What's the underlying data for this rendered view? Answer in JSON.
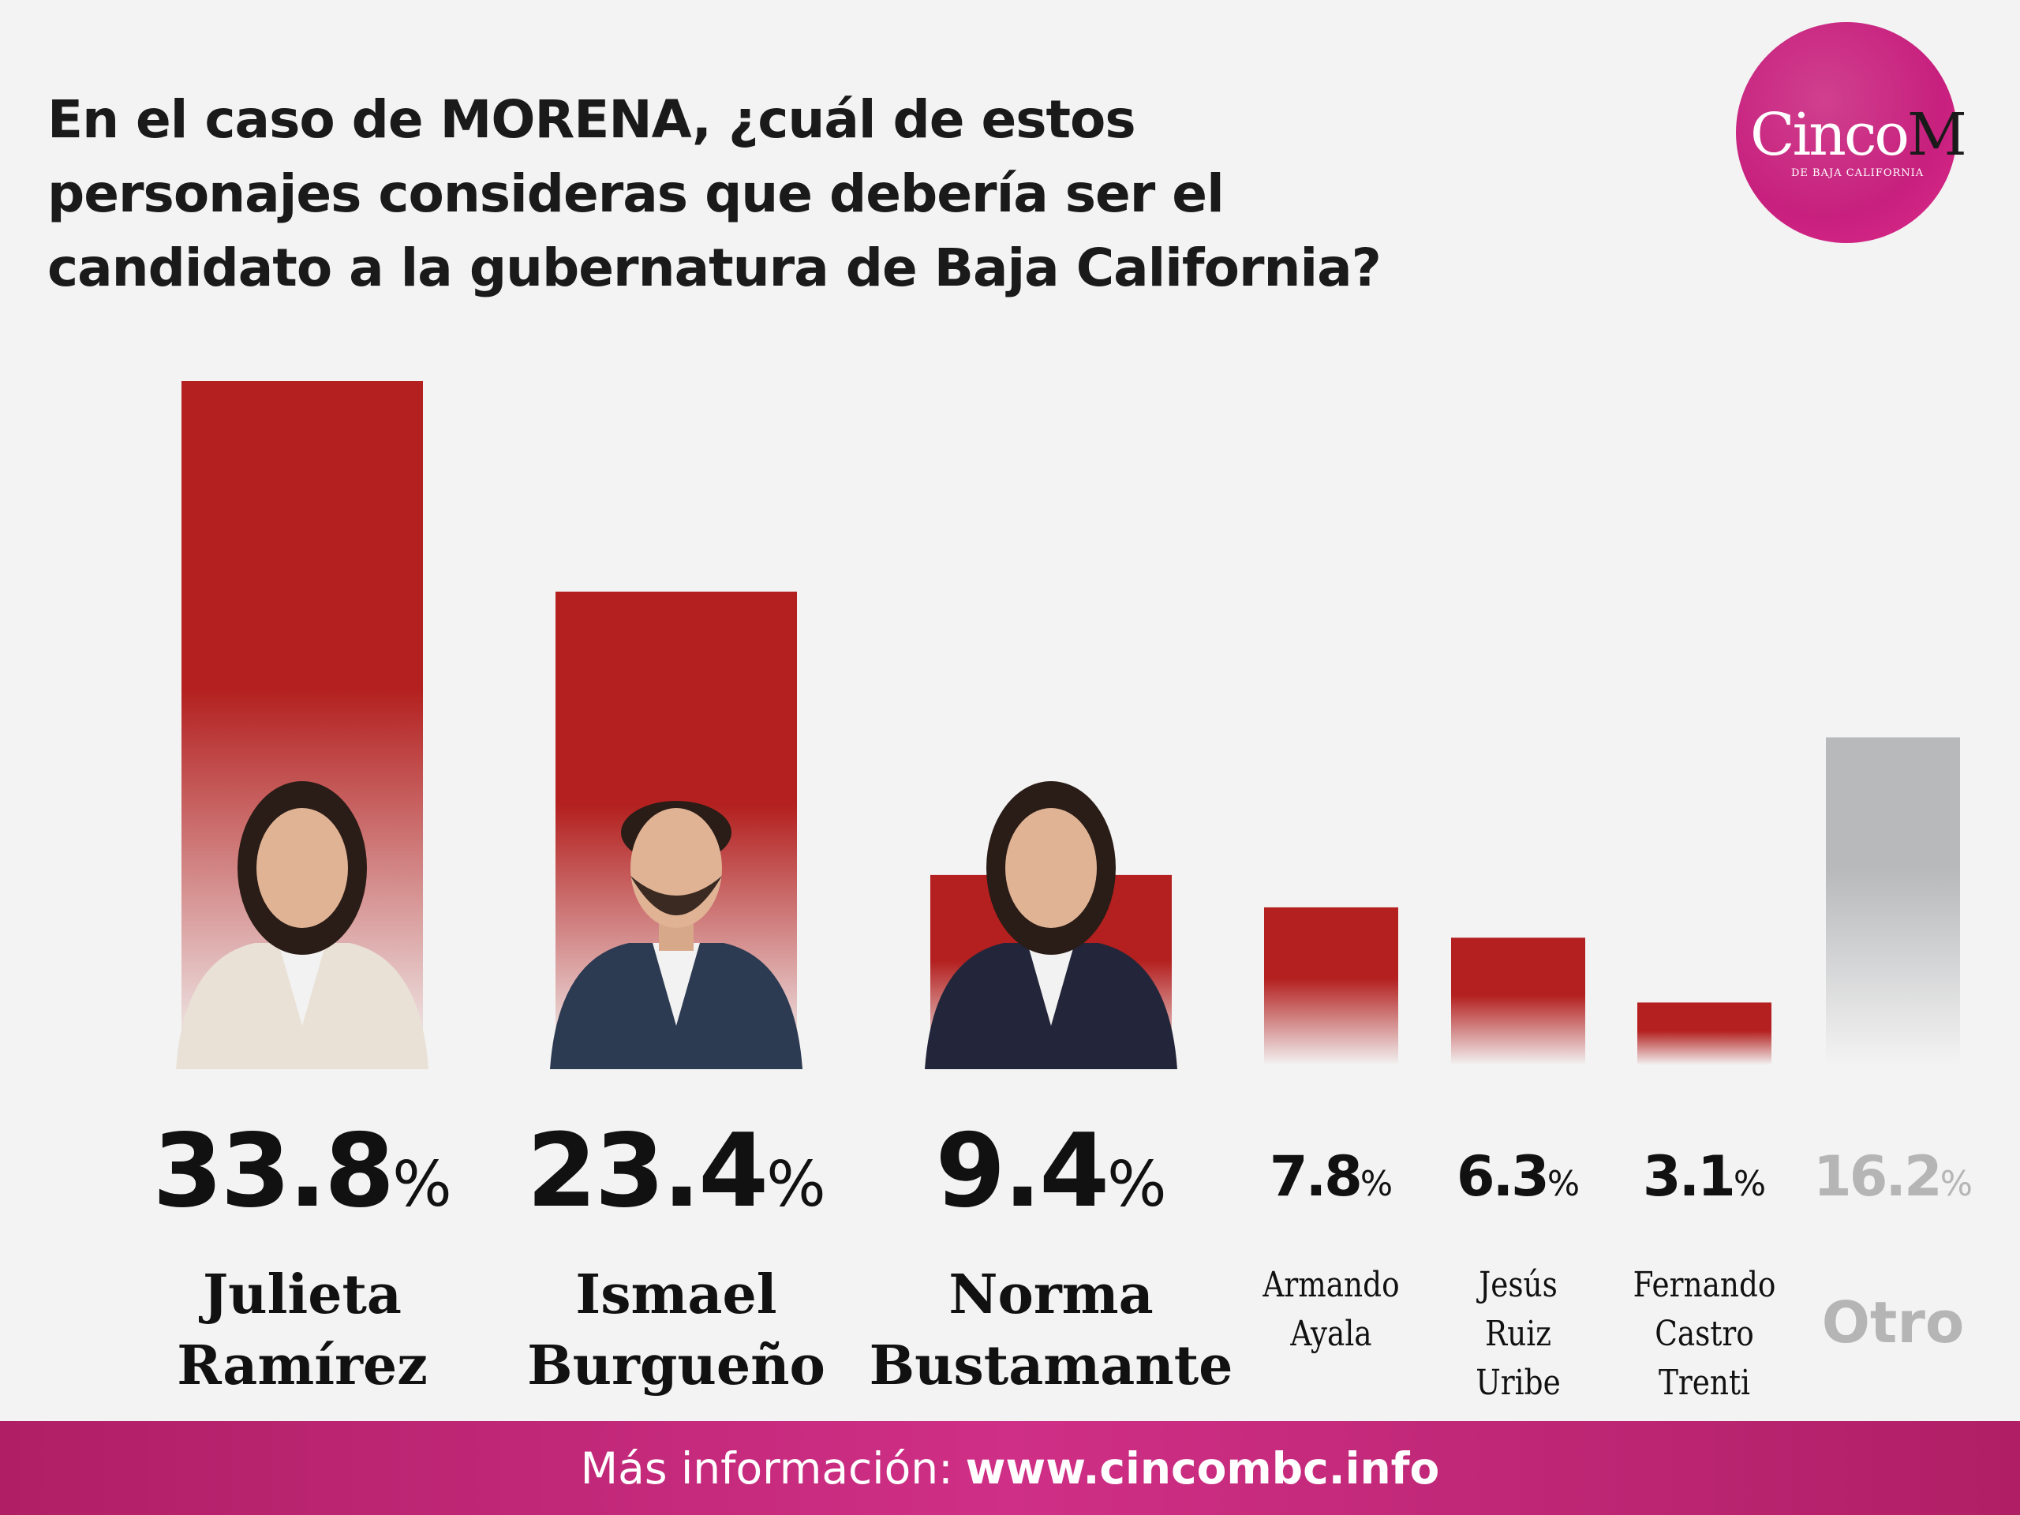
{
  "title": "En el caso de MORENA, ¿cuál de estos personajes consideras que debería ser el candidato a la gubernatura de Baja California?",
  "logo": {
    "word": "Cinco",
    "letter": "M",
    "subtitle": "DE BAJA CALIFORNIA"
  },
  "footer": {
    "label": "Más información:",
    "url": "www.cincombc.info"
  },
  "colors": {
    "bar": "#b3201f",
    "other_bar": "#b8b9bb",
    "footer": "#c2276f",
    "logo": "#d0267f"
  },
  "chart_data": {
    "type": "bar",
    "title": "En el caso de MORENA, ¿cuál de estos personajes consideras que debería ser el candidato a la gubernatura de Baja California?",
    "categories": [
      "Julieta Ramírez",
      "Ismael Burgueño",
      "Norma Bustamante",
      "Armando Ayala",
      "Jesús Ruiz Uribe",
      "Fernando Castro Trenti",
      "Otro"
    ],
    "name_lines": [
      "Julieta\nRamírez",
      "Ismael\nBurgueño",
      "Norma\nBustamante",
      "Armando\nAyala",
      "Jesús\nRuiz\nUribe",
      "Fernando\nCastro\nTrenti",
      "Otro"
    ],
    "values": [
      33.8,
      23.4,
      9.4,
      7.8,
      6.3,
      3.1,
      16.2
    ],
    "labels": [
      "33.8",
      "23.4",
      "9.4",
      "7.8",
      "6.3",
      "3.1",
      "16.2"
    ],
    "unit": "%",
    "has_photo": [
      true,
      true,
      true,
      false,
      false,
      false,
      false
    ],
    "xlabel": "",
    "ylabel": "",
    "ylim": [
      0,
      33.8
    ],
    "grid": false,
    "legend": "none"
  }
}
